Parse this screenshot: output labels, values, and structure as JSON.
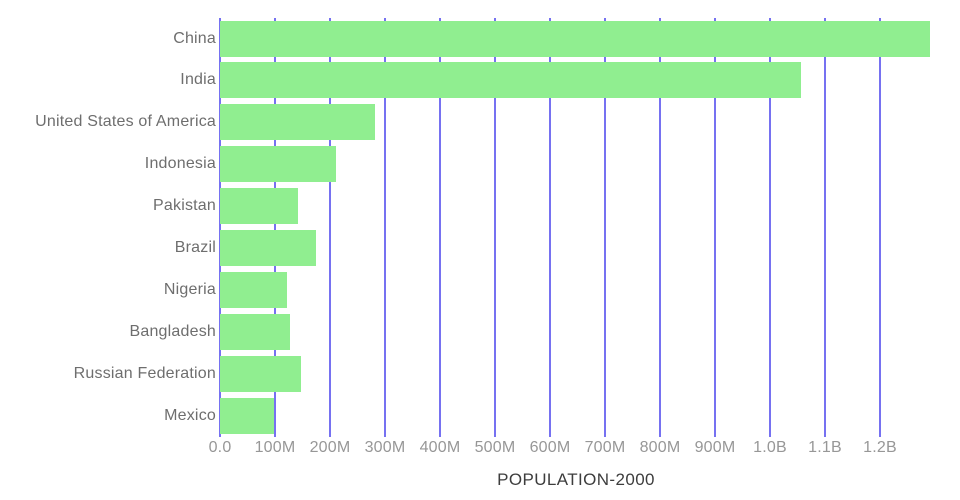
{
  "chart_data": {
    "type": "bar",
    "orientation": "horizontal",
    "title": "POPULATION-2000",
    "categories": [
      "China",
      "India",
      "United States of America",
      "Indonesia",
      "Pakistan",
      "Brazil",
      "Nigeria",
      "Bangladesh",
      "Russian Federation",
      "Mexico"
    ],
    "values_millions": [
      1290.6,
      1056.6,
      281.7,
      211.5,
      142.3,
      174.8,
      122.3,
      127.7,
      146.4,
      98.9
    ],
    "xlabel": "POPULATION-2000",
    "ylabel": "",
    "xlim_millions": [
      0,
      1294
    ],
    "grid": "vertical-gridlines-behind-bars",
    "legend": "none",
    "x_ticks": [
      {
        "label": "0.0",
        "value_millions": 0
      },
      {
        "label": "100M",
        "value_millions": 100
      },
      {
        "label": "200M",
        "value_millions": 200
      },
      {
        "label": "300M",
        "value_millions": 300
      },
      {
        "label": "400M",
        "value_millions": 400
      },
      {
        "label": "500M",
        "value_millions": 500
      },
      {
        "label": "600M",
        "value_millions": 600
      },
      {
        "label": "700M",
        "value_millions": 700
      },
      {
        "label": "800M",
        "value_millions": 800
      },
      {
        "label": "900M",
        "value_millions": 900
      },
      {
        "label": "1.0B",
        "value_millions": 1000
      },
      {
        "label": "1.1B",
        "value_millions": 1100
      },
      {
        "label": "1.2B",
        "value_millions": 1200
      }
    ],
    "colors": {
      "bar": "#90EE90",
      "gridline": "#7671F1",
      "category_label": "#6E6E6E",
      "tick_label": "#979797",
      "title": "#3D3D3D"
    }
  }
}
